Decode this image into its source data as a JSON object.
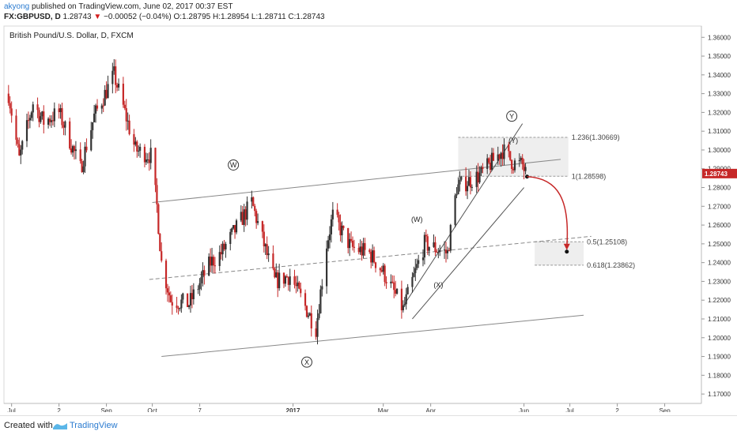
{
  "header": {
    "author": "akyong",
    "published": "published on TradingView.com, June 02, 2017 00:37 EST",
    "symbol_line": "FX:GBPUSD, D",
    "last": "1.28743",
    "change": "−0.00052 (−0.04%)",
    "ohlc": "O:1.28795 H:1.28954 L:1.28711 C:1.28743"
  },
  "footer": {
    "created_with": "Created with",
    "brand": "TradingView"
  },
  "chart_data": {
    "type": "candlestick",
    "title": "British Pound/U.S. Dollar, D, FXCM",
    "ylim": [
      1.165,
      1.366
    ],
    "y_ticks": [
      "1.36000",
      "1.35000",
      "1.34000",
      "1.33000",
      "1.32000",
      "1.31000",
      "1.30000",
      "1.29000",
      "1.28000",
      "1.27000",
      "1.26000",
      "1.25000",
      "1.24000",
      "1.23000",
      "1.22000",
      "1.21000",
      "1.20000",
      "1.19000",
      "1.18000",
      "1.17000"
    ],
    "y_tick_values": [
      1.36,
      1.35,
      1.34,
      1.33,
      1.32,
      1.31,
      1.3,
      1.29,
      1.28,
      1.27,
      1.26,
      1.25,
      1.24,
      1.23,
      1.22,
      1.21,
      1.2,
      1.19,
      1.18,
      1.17
    ],
    "x_ticks": [
      "Jul",
      "2",
      "Sep",
      "Oct",
      "7",
      "2017",
      "Mar",
      "Apr",
      "Jun",
      "Jul",
      "2",
      "Sep"
    ],
    "x_tick_dates": [
      "2016-07-01",
      "2016-08-01",
      "2016-09-01",
      "2016-10-01",
      "2016-11-01",
      "2017-01-01",
      "2017-03-01",
      "2017-04-01",
      "2017-06-01",
      "2017-07-01",
      "2017-08-01",
      "2017-09-01"
    ],
    "current_price": "1.28743",
    "colors": {
      "up": "#333333",
      "down": "#c62828",
      "price_label": "#c62828",
      "projection": "#c62828",
      "channel": "#888888"
    },
    "price_anchors": [
      {
        "date": "2016-06-29",
        "price": 1.33
      },
      {
        "date": "2016-07-06",
        "price": 1.295
      },
      {
        "date": "2016-07-15",
        "price": 1.325
      },
      {
        "date": "2016-07-22",
        "price": 1.315
      },
      {
        "date": "2016-08-01",
        "price": 1.32
      },
      {
        "date": "2016-08-15",
        "price": 1.29
      },
      {
        "date": "2016-08-24",
        "price": 1.318
      },
      {
        "date": "2016-09-06",
        "price": 1.34
      },
      {
        "date": "2016-09-20",
        "price": 1.3
      },
      {
        "date": "2016-09-30",
        "price": 1.297
      },
      {
        "date": "2016-10-04",
        "price": 1.27
      },
      {
        "date": "2016-10-07",
        "price": 1.24
      },
      {
        "date": "2016-10-13",
        "price": 1.22
      },
      {
        "date": "2016-10-25",
        "price": 1.218
      },
      {
        "date": "2016-11-08",
        "price": 1.24
      },
      {
        "date": "2016-11-15",
        "price": 1.245
      },
      {
        "date": "2016-12-05",
        "price": 1.272
      },
      {
        "date": "2016-12-20",
        "price": 1.23
      },
      {
        "date": "2016-12-30",
        "price": 1.233
      },
      {
        "date": "2017-01-16",
        "price": 1.205
      },
      {
        "date": "2017-01-23",
        "price": 1.25
      },
      {
        "date": "2017-01-27",
        "price": 1.265
      },
      {
        "date": "2017-02-08",
        "price": 1.248
      },
      {
        "date": "2017-02-20",
        "price": 1.245
      },
      {
        "date": "2017-03-01",
        "price": 1.235
      },
      {
        "date": "2017-03-14",
        "price": 1.215
      },
      {
        "date": "2017-03-28",
        "price": 1.25
      },
      {
        "date": "2017-04-12",
        "price": 1.245
      },
      {
        "date": "2017-04-18",
        "price": 1.28
      },
      {
        "date": "2017-05-04",
        "price": 1.287
      },
      {
        "date": "2017-05-18",
        "price": 1.3
      },
      {
        "date": "2017-05-25",
        "price": 1.293
      },
      {
        "date": "2017-05-31",
        "price": 1.292
      },
      {
        "date": "2017-06-02",
        "price": 1.2874
      }
    ],
    "channels": [
      {
        "kind": "upper",
        "from": {
          "date": "2016-10-01",
          "price": 1.272
        },
        "to": {
          "date": "2017-06-25",
          "price": 1.295
        }
      },
      {
        "kind": "lower",
        "from": {
          "date": "2016-10-07",
          "price": 1.19
        },
        "to": {
          "date": "2017-07-10",
          "price": 1.212
        }
      },
      {
        "kind": "middle-dashed",
        "from": {
          "date": "2016-09-29",
          "price": 1.231
        },
        "to": {
          "date": "2017-07-15",
          "price": 1.254
        }
      }
    ],
    "inner_channel": [
      {
        "from": {
          "date": "2017-03-15",
          "price": 1.218
        },
        "to": {
          "date": "2017-05-31",
          "price": 1.314
        }
      },
      {
        "from": {
          "date": "2017-03-20",
          "price": 1.21
        },
        "to": {
          "date": "2017-06-01",
          "price": 1.28
        }
      }
    ],
    "fib_zones": [
      {
        "top": 1.30669,
        "bottom": 1.28598,
        "from": "2017-04-19",
        "to": "2017-06-30"
      },
      {
        "top": 1.25108,
        "bottom": 1.23862,
        "from": "2017-06-08",
        "to": "2017-07-10"
      }
    ],
    "fib_labels": [
      {
        "text": "1.236(1.30669)",
        "price": 1.30669,
        "date": "2017-06-30"
      },
      {
        "text": "1(1.28598)",
        "price": 1.28598,
        "date": "2017-06-30"
      },
      {
        "text": "0.5(1.25108)",
        "price": 1.25108,
        "date": "2017-07-10"
      },
      {
        "text": "0.618(1.23862)",
        "price": 1.23862,
        "date": "2017-07-10"
      }
    ],
    "wave_labels": [
      {
        "text": "W",
        "circled": true,
        "date": "2016-11-23",
        "price": 1.292
      },
      {
        "text": "X",
        "circled": true,
        "date": "2017-01-10",
        "price": 1.187
      },
      {
        "text": "Y",
        "circled": true,
        "date": "2017-05-24",
        "price": 1.318
      },
      {
        "text": "(W)",
        "circled": false,
        "date": "2017-03-23",
        "price": 1.263
      },
      {
        "text": "(X)",
        "circled": false,
        "date": "2017-04-06",
        "price": 1.228
      },
      {
        "text": "(Y)",
        "circled": false,
        "date": "2017-05-25",
        "price": 1.305
      }
    ],
    "projection": {
      "from": {
        "date": "2017-06-03",
        "price": 1.2858
      },
      "to": {
        "date": "2017-06-29",
        "price": 1.245
      }
    }
  }
}
